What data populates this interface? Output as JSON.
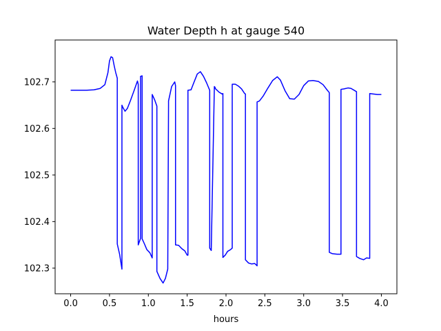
{
  "chart_data": {
    "type": "line",
    "title": "Water Depth h at gauge 540",
    "xlabel": "hours",
    "ylabel": "",
    "xlim": [
      -0.2,
      4.2
    ],
    "ylim": [
      102.245,
      102.79
    ],
    "xticks": [
      0.0,
      0.5,
      1.0,
      1.5,
      2.0,
      2.5,
      3.0,
      3.5,
      4.0
    ],
    "xtick_labels": [
      "0.0",
      "0.5",
      "1.0",
      "1.5",
      "2.0",
      "2.5",
      "3.0",
      "3.5",
      "4.0"
    ],
    "yticks": [
      102.3,
      102.4,
      102.5,
      102.6,
      102.7
    ],
    "ytick_labels": [
      "102.3",
      "102.4",
      "102.5",
      "102.6",
      "102.7"
    ],
    "grid": false,
    "legend": "none",
    "series": [
      {
        "color": "#0000ff",
        "x": [
          0.0,
          0.2,
          0.3,
          0.38,
          0.44,
          0.48,
          0.5,
          0.52,
          0.54,
          0.56,
          0.58,
          0.6,
          0.6,
          0.63,
          0.66,
          0.66,
          0.67,
          0.7,
          0.73,
          0.77,
          0.82,
          0.86,
          0.87,
          0.87,
          0.9,
          0.9,
          0.92,
          0.92,
          0.95,
          0.98,
          1.02,
          1.05,
          1.05,
          1.08,
          1.11,
          1.11,
          1.15,
          1.19,
          1.22,
          1.25,
          1.26,
          1.26,
          1.3,
          1.34,
          1.35,
          1.35,
          1.39,
          1.43,
          1.47,
          1.5,
          1.51,
          1.51,
          1.55,
          1.58,
          1.63,
          1.67,
          1.71,
          1.75,
          1.79,
          1.79,
          1.81,
          1.81,
          1.85,
          1.86,
          1.86,
          1.91,
          1.95,
          1.96,
          1.96,
          1.99,
          2.02,
          2.06,
          2.08,
          2.08,
          2.12,
          2.16,
          2.2,
          2.24,
          2.25,
          2.25,
          2.29,
          2.33,
          2.37,
          2.4,
          2.4,
          2.43,
          2.48,
          2.54,
          2.6,
          2.66,
          2.7,
          2.76,
          2.82,
          2.88,
          2.94,
          3.0,
          3.06,
          3.12,
          3.19,
          3.25,
          3.3,
          3.33,
          3.33,
          3.37,
          3.43,
          3.48,
          3.48,
          3.52,
          3.57,
          3.61,
          3.65,
          3.68,
          3.68,
          3.72,
          3.77,
          3.81,
          3.85,
          3.85,
          3.9,
          3.95,
          4.0
        ],
        "y": [
          102.682,
          102.682,
          102.683,
          102.686,
          102.694,
          102.72,
          102.745,
          102.754,
          102.752,
          102.735,
          102.72,
          102.708,
          102.352,
          102.33,
          102.298,
          102.65,
          102.646,
          102.637,
          102.643,
          102.66,
          102.683,
          102.702,
          102.695,
          102.35,
          102.364,
          102.712,
          102.713,
          102.363,
          102.352,
          102.34,
          102.333,
          102.322,
          102.673,
          102.662,
          102.648,
          102.293,
          102.278,
          102.268,
          102.278,
          102.298,
          102.65,
          102.659,
          102.69,
          102.7,
          102.692,
          102.35,
          102.349,
          102.342,
          102.337,
          102.328,
          102.328,
          102.682,
          102.683,
          102.696,
          102.717,
          102.722,
          102.712,
          102.698,
          102.682,
          102.343,
          102.338,
          102.338,
          102.69,
          102.688,
          102.686,
          102.678,
          102.674,
          102.675,
          102.323,
          102.328,
          102.336,
          102.34,
          102.343,
          102.695,
          102.695,
          102.691,
          102.685,
          102.675,
          102.674,
          102.318,
          102.311,
          102.309,
          102.31,
          102.305,
          102.657,
          102.659,
          102.67,
          102.687,
          102.703,
          102.711,
          102.704,
          102.681,
          102.664,
          102.663,
          102.673,
          102.692,
          102.702,
          102.703,
          102.701,
          102.694,
          102.683,
          102.677,
          102.334,
          102.331,
          102.33,
          102.33,
          102.684,
          102.685,
          102.687,
          102.686,
          102.682,
          102.679,
          102.325,
          102.321,
          102.318,
          102.322,
          102.321,
          102.675,
          102.674,
          102.673,
          102.673
        ]
      }
    ]
  }
}
